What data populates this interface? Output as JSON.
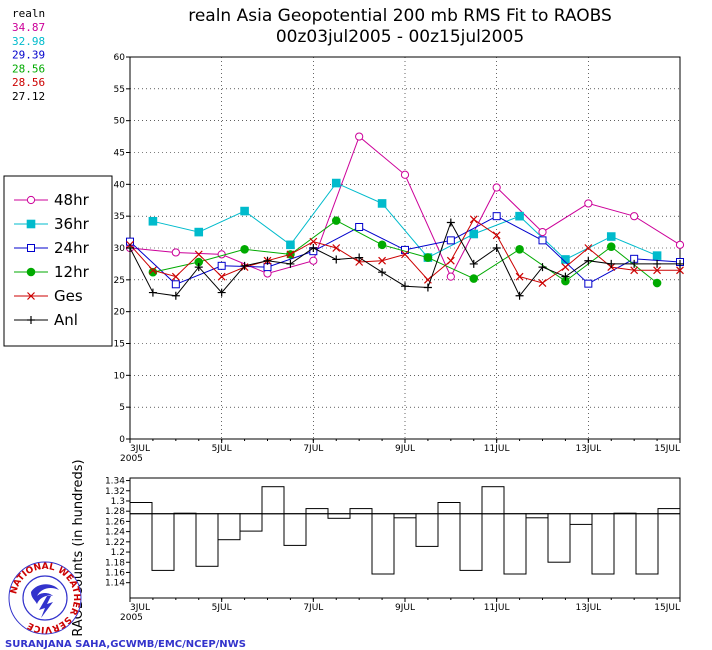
{
  "title": "realn Asia Geopotential 200 mb RMS Fit to RAOBS",
  "subtitle": "00z03jul2005 - 00z15jul2005",
  "stats": {
    "header": "realn",
    "items": [
      {
        "value": "34.87",
        "color": "#cc0099"
      },
      {
        "value": "32.98",
        "color": "#00bbcc"
      },
      {
        "value": "29.39",
        "color": "#0000cc"
      },
      {
        "value": "28.56",
        "color": "#00aa00"
      },
      {
        "value": "28.56",
        "color": "#cc0000"
      },
      {
        "value": "27.12",
        "color": "#000000"
      }
    ]
  },
  "legend": [
    {
      "label": "48hr",
      "color": "#cc0099",
      "marker": "open-circle"
    },
    {
      "label": "36hr",
      "color": "#00bbcc",
      "marker": "filled-square"
    },
    {
      "label": "24hr",
      "color": "#0000cc",
      "marker": "open-square"
    },
    {
      "label": "12hr",
      "color": "#00aa00",
      "marker": "filled-circle"
    },
    {
      "label": "Ges",
      "color": "#cc0000",
      "marker": "x"
    },
    {
      "label": "Anl",
      "color": "#000000",
      "marker": "plus"
    }
  ],
  "credit": "SURANJANA SAHA,GCWMB/EMC/NCEP/NWS",
  "logo_text": "NATIONAL WEATHER SERVICE",
  "chart_data": [
    {
      "type": "line",
      "ylim": [
        0,
        60
      ],
      "yticks": [
        0,
        5,
        10,
        15,
        20,
        25,
        30,
        35,
        40,
        45,
        50,
        55,
        60
      ],
      "xlim": [
        0,
        24
      ],
      "xticks": [
        {
          "x": 0,
          "label": "3JUL",
          "label2": "2005"
        },
        {
          "x": 4,
          "label": "5JUL"
        },
        {
          "x": 8,
          "label": "7JUL"
        },
        {
          "x": 12,
          "label": "9JUL"
        },
        {
          "x": 16,
          "label": "11JUL"
        },
        {
          "x": 20,
          "label": "13JUL"
        },
        {
          "x": 24,
          "label": "15JUL"
        }
      ],
      "grid": true,
      "legend_position": "left",
      "series": [
        {
          "name": "48hr",
          "points": [
            [
              0,
              30
            ],
            [
              2,
              29.3
            ],
            [
              4,
              29
            ],
            [
              6,
              26
            ],
            [
              8,
              28
            ],
            [
              10,
              47.5
            ],
            [
              12,
              41.5
            ],
            [
              14,
              25.5
            ],
            [
              16,
              39.5
            ],
            [
              18,
              32.5
            ],
            [
              20,
              37
            ],
            [
              22,
              35
            ],
            [
              24,
              30.5
            ]
          ]
        },
        {
          "name": "36hr",
          "points": [
            [
              1,
              34.2
            ],
            [
              3,
              32.5
            ],
            [
              5,
              35.8
            ],
            [
              7,
              30.5
            ],
            [
              9,
              40.2
            ],
            [
              11,
              37
            ],
            [
              13,
              28.5
            ],
            [
              15,
              32.2
            ],
            [
              17,
              35
            ],
            [
              19,
              28.2
            ],
            [
              21,
              31.8
            ],
            [
              23,
              28.8
            ]
          ]
        },
        {
          "name": "24hr",
          "points": [
            [
              0,
              31
            ],
            [
              2,
              24.3
            ],
            [
              4,
              27.2
            ],
            [
              6,
              27
            ],
            [
              8,
              29.5
            ],
            [
              10,
              33.3
            ],
            [
              12,
              29.7
            ],
            [
              14,
              31.2
            ],
            [
              16,
              35
            ],
            [
              18,
              31.2
            ],
            [
              20,
              24.4
            ],
            [
              22,
              28.3
            ],
            [
              24,
              27.8
            ]
          ]
        },
        {
          "name": "12hr",
          "points": [
            [
              1,
              26.2
            ],
            [
              3,
              27.8
            ],
            [
              5,
              29.8
            ],
            [
              7,
              29
            ],
            [
              9,
              34.3
            ],
            [
              11,
              30.5
            ],
            [
              13,
              28.5
            ],
            [
              15,
              25.2
            ],
            [
              17,
              29.8
            ],
            [
              19,
              24.8
            ],
            [
              21,
              30.2
            ],
            [
              23,
              24.5
            ]
          ]
        },
        {
          "name": "Ges",
          "points": [
            [
              0,
              30.5
            ],
            [
              1,
              26.5
            ],
            [
              2,
              25.5
            ],
            [
              3,
              29
            ],
            [
              4,
              25.5
            ],
            [
              5,
              27
            ],
            [
              6,
              28
            ],
            [
              7,
              29
            ],
            [
              8,
              31
            ],
            [
              9,
              30
            ],
            [
              10,
              27.8
            ],
            [
              11,
              28
            ],
            [
              12,
              29
            ],
            [
              13,
              25
            ],
            [
              14,
              28
            ],
            [
              15,
              34.5
            ],
            [
              16,
              32
            ],
            [
              17,
              25.5
            ],
            [
              18,
              24.5
            ],
            [
              19,
              27
            ],
            [
              20,
              30
            ],
            [
              21,
              27
            ],
            [
              22,
              26.5
            ],
            [
              23,
              26.5
            ],
            [
              24,
              26.5
            ]
          ]
        },
        {
          "name": "Anl",
          "points": [
            [
              0,
              30
            ],
            [
              1,
              23
            ],
            [
              2,
              22.5
            ],
            [
              3,
              27
            ],
            [
              4,
              23
            ],
            [
              5,
              27.2
            ],
            [
              6,
              28
            ],
            [
              7,
              27.5
            ],
            [
              8,
              30
            ],
            [
              9,
              28.2
            ],
            [
              10,
              28.5
            ],
            [
              11,
              26.2
            ],
            [
              12,
              24
            ],
            [
              13,
              23.8
            ],
            [
              14,
              34
            ],
            [
              15,
              27.5
            ],
            [
              16,
              30
            ],
            [
              17,
              22.5
            ],
            [
              18,
              27
            ],
            [
              19,
              25.5
            ],
            [
              20,
              28
            ],
            [
              21,
              27.5
            ],
            [
              22,
              27.5
            ],
            [
              23,
              27.5
            ],
            [
              24,
              27.5
            ]
          ]
        }
      ]
    },
    {
      "type": "bar",
      "ylabel": "RAOB Counts (in hundreds)",
      "ylim": [
        1.11,
        1.345
      ],
      "yticks": [
        1.14,
        1.16,
        1.18,
        1.2,
        1.22,
        1.24,
        1.26,
        1.28,
        1.3,
        1.32,
        1.34
      ],
      "ytick_labels": [
        "1.14",
        "1.16",
        "1.18",
        "1.2",
        "1.22",
        "1.24",
        "1.26",
        "1.28",
        "1.3",
        "1.32",
        "1.34"
      ],
      "reference_line": 1.275,
      "xticks": [
        {
          "x": 0,
          "label": "3JUL",
          "label2": "2005"
        },
        {
          "x": 4,
          "label": "5JUL"
        },
        {
          "x": 8,
          "label": "7JUL"
        },
        {
          "x": 12,
          "label": "9JUL"
        },
        {
          "x": 16,
          "label": "11JUL"
        },
        {
          "x": 20,
          "label": "13JUL"
        },
        {
          "x": 24,
          "label": "15JUL"
        }
      ],
      "values": [
        1.297,
        1.164,
        1.276,
        1.172,
        1.224,
        1.241,
        1.328,
        1.213,
        1.285,
        1.266,
        1.285,
        1.157,
        1.267,
        1.211,
        1.297,
        1.164,
        1.328,
        1.157,
        1.267,
        1.18,
        1.254,
        1.157,
        1.276,
        1.157,
        1.285
      ]
    }
  ]
}
